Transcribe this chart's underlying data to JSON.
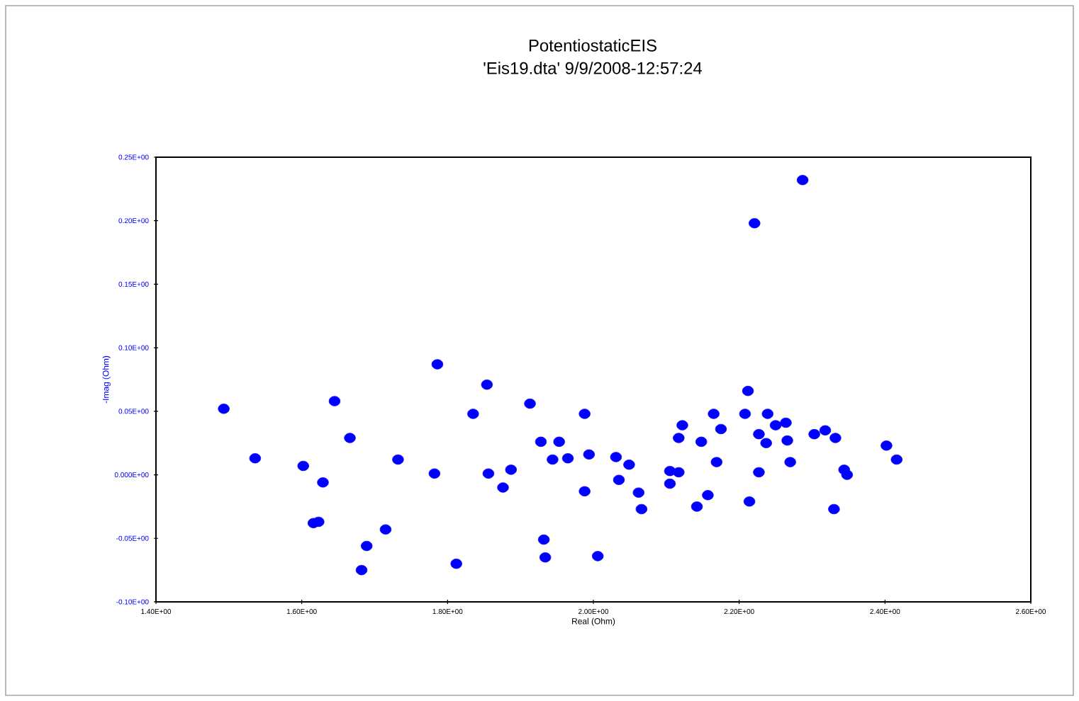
{
  "chart_data": {
    "type": "scatter",
    "title": "PotentiostaticEIS",
    "subtitle": "'Eis19.dta' 9/9/2008-12:57:24",
    "xlabel": "Real (Ohm)",
    "ylabel": "-Imag (Ohm)",
    "xlim": [
      1.4,
      2.6
    ],
    "ylim": [
      -0.1,
      0.25
    ],
    "xticks": [
      {
        "value": 1.4,
        "label": "1.40E+00"
      },
      {
        "value": 1.6,
        "label": "1.60E+00"
      },
      {
        "value": 1.8,
        "label": "1.80E+00"
      },
      {
        "value": 2.0,
        "label": "2.00E+00"
      },
      {
        "value": 2.2,
        "label": "2.20E+00"
      },
      {
        "value": 2.4,
        "label": "2.40E+00"
      },
      {
        "value": 2.6,
        "label": "2.60E+00"
      }
    ],
    "yticks": [
      {
        "value": -0.1,
        "label": "-0.10E+00"
      },
      {
        "value": -0.05,
        "label": "-0.05E+00"
      },
      {
        "value": 0,
        "label": "0.000E+00"
      },
      {
        "value": 0.05,
        "label": "0.05E+00"
      },
      {
        "value": 0.1,
        "label": "0.10E+00"
      },
      {
        "value": 0.15,
        "label": "0.15E+00"
      },
      {
        "value": 0.2,
        "label": "0.20E+00"
      },
      {
        "value": 0.25,
        "label": "0.25E+00"
      }
    ],
    "grid": false,
    "marker": "circle",
    "series": [
      {
        "color": "#0000ff",
        "x": [
          1.493,
          1.536,
          1.602,
          1.629,
          1.616,
          1.623,
          1.645,
          1.666,
          1.689,
          1.682,
          1.715,
          1.732,
          1.786,
          1.782,
          1.812,
          1.835,
          1.854,
          1.856,
          1.876,
          1.887,
          1.913,
          1.928,
          1.932,
          1.934,
          1.944,
          1.953,
          1.965,
          1.988,
          1.994,
          1.988,
          2.006,
          2.031,
          2.035,
          2.049,
          2.062,
          2.066,
          2.105,
          2.105,
          2.117,
          2.117,
          2.122,
          2.142,
          2.148,
          2.157,
          2.165,
          2.175,
          2.169,
          2.208,
          2.212,
          2.214,
          2.221,
          2.227,
          2.227,
          2.237,
          2.239,
          2.25,
          2.264,
          2.266,
          2.27,
          2.287,
          2.303,
          2.318,
          2.332,
          2.33,
          2.344,
          2.348,
          2.402,
          2.416
        ],
        "values": [
          0.052,
          0.013,
          0.007,
          -0.006,
          -0.038,
          -0.037,
          0.058,
          0.029,
          -0.056,
          -0.075,
          -0.043,
          0.012,
          0.087,
          0.001,
          -0.07,
          0.048,
          0.071,
          0.001,
          -0.01,
          0.004,
          0.056,
          0.026,
          -0.051,
          -0.065,
          0.012,
          0.026,
          0.013,
          0.048,
          0.016,
          -0.013,
          -0.064,
          0.014,
          -0.004,
          0.008,
          -0.014,
          -0.027,
          -0.007,
          0.003,
          0.002,
          0.029,
          0.039,
          -0.025,
          0.026,
          -0.016,
          0.048,
          0.036,
          0.01,
          0.048,
          0.066,
          -0.021,
          0.198,
          0.002,
          0.032,
          0.025,
          0.048,
          0.039,
          0.041,
          0.027,
          0.01,
          0.232,
          0.032,
          0.035,
          0.029,
          -0.027,
          0.004,
          0.0,
          0.023,
          0.012
        ]
      }
    ]
  }
}
